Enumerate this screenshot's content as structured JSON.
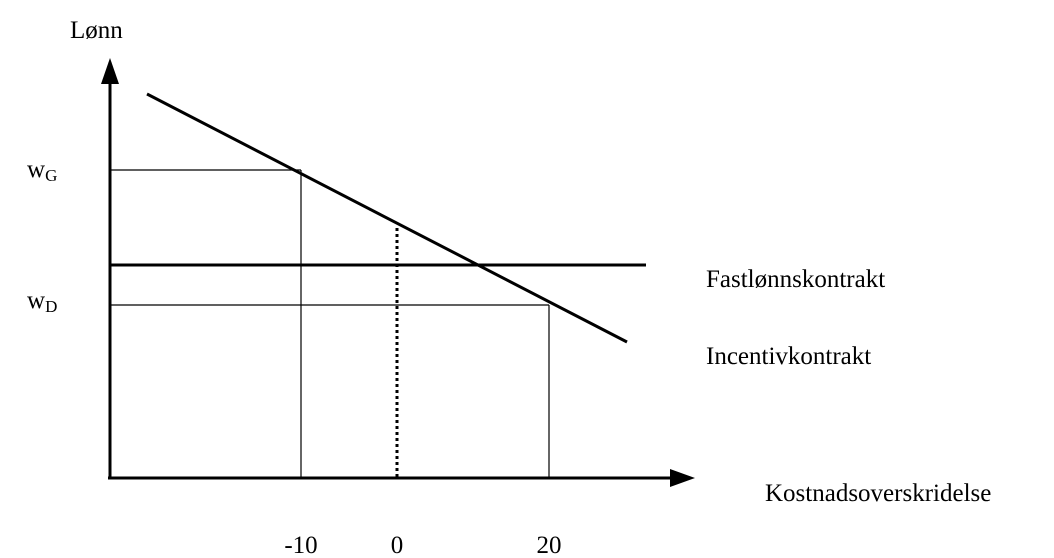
{
  "y_axis_label": "Lønn",
  "x_axis_label": "Kostnadsoverskridelse",
  "wage_labels": [
    {
      "base": "w",
      "sub": "G"
    },
    {
      "base": "w",
      "sub": "D"
    }
  ],
  "x_ticks": [
    "-10",
    "0",
    "20"
  ],
  "line_labels": {
    "fixed": "Fastlønnskontrakt",
    "incentive": "Incentivkontrakt"
  }
}
